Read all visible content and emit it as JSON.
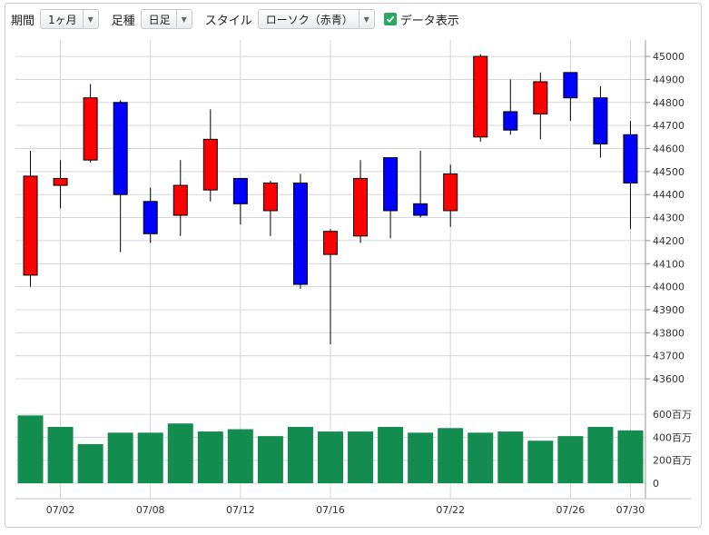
{
  "toolbar": {
    "period_label": "期間",
    "period_value": "1ヶ月",
    "foot_label": "足種",
    "foot_value": "日足",
    "style_label": "スタイル",
    "style_value": "ローソク（赤青）",
    "show_data_label": "データ表示",
    "show_data_checked": true
  },
  "colors": {
    "up": "#ff0000",
    "down": "#0000ff",
    "volume": "#138d4f",
    "grid": "#d3d7db",
    "check": "#2ea861"
  },
  "chart_data": {
    "type": "candlestick",
    "price_axis": {
      "ylim": [
        43550,
        45100
      ],
      "ticks": [
        43600,
        43700,
        43800,
        43900,
        44000,
        44100,
        44200,
        44300,
        44400,
        44500,
        44600,
        44700,
        44800,
        44900,
        45000
      ],
      "tick_labels": [
        "43600",
        "43700",
        "43800",
        "43900",
        "44000",
        "44100",
        "44200",
        "44300",
        "44400",
        "44500",
        "44600",
        "44700",
        "44800",
        "44900",
        "45000"
      ]
    },
    "volume_axis": {
      "unit": "百万",
      "ylim": [
        0,
        650
      ],
      "ticks": [
        0,
        200,
        400,
        600
      ],
      "tick_labels": [
        "0",
        "200百万",
        "400百万",
        "600百万"
      ]
    },
    "x_labels": [
      {
        "index": 1,
        "label": "07/02"
      },
      {
        "index": 4,
        "label": "07/08"
      },
      {
        "index": 7,
        "label": "07/12"
      },
      {
        "index": 10,
        "label": "07/16"
      },
      {
        "index": 14,
        "label": "07/22"
      },
      {
        "index": 18,
        "label": "07/26"
      },
      {
        "index": 20,
        "label": "07/30"
      }
    ],
    "candles": [
      {
        "open": 44050,
        "high": 44590,
        "low": 44000,
        "close": 44480,
        "volume": 590
      },
      {
        "open": 44440,
        "high": 44550,
        "low": 44340,
        "close": 44470,
        "volume": 490
      },
      {
        "open": 44550,
        "high": 44880,
        "low": 44540,
        "close": 44820,
        "volume": 340
      },
      {
        "open": 44800,
        "high": 44810,
        "low": 44150,
        "close": 44400,
        "volume": 440
      },
      {
        "open": 44370,
        "high": 44430,
        "low": 44190,
        "close": 44230,
        "volume": 440
      },
      {
        "open": 44310,
        "high": 44550,
        "low": 44220,
        "close": 44440,
        "volume": 520
      },
      {
        "open": 44420,
        "high": 44770,
        "low": 44370,
        "close": 44640,
        "volume": 450
      },
      {
        "open": 44470,
        "high": 44470,
        "low": 44270,
        "close": 44360,
        "volume": 470
      },
      {
        "open": 44330,
        "high": 44460,
        "low": 44220,
        "close": 44450,
        "volume": 410
      },
      {
        "open": 44450,
        "high": 44490,
        "low": 43990,
        "close": 44010,
        "volume": 490
      },
      {
        "open": 44140,
        "high": 44250,
        "low": 43750,
        "close": 44240,
        "volume": 450
      },
      {
        "open": 44220,
        "high": 44550,
        "low": 44190,
        "close": 44470,
        "volume": 450
      },
      {
        "open": 44560,
        "high": 44560,
        "low": 44210,
        "close": 44330,
        "volume": 490
      },
      {
        "open": 44360,
        "high": 44590,
        "low": 44300,
        "close": 44310,
        "volume": 440
      },
      {
        "open": 44330,
        "high": 44530,
        "low": 44260,
        "close": 44490,
        "volume": 480
      },
      {
        "open": 44650,
        "high": 45010,
        "low": 44630,
        "close": 45000,
        "volume": 440
      },
      {
        "open": 44760,
        "high": 44900,
        "low": 44660,
        "close": 44680,
        "volume": 450
      },
      {
        "open": 44750,
        "high": 44930,
        "low": 44640,
        "close": 44890,
        "volume": 370
      },
      {
        "open": 44930,
        "high": 44930,
        "low": 44720,
        "close": 44820,
        "volume": 410
      },
      {
        "open": 44820,
        "high": 44870,
        "low": 44560,
        "close": 44620,
        "volume": 490
      },
      {
        "open": 44660,
        "high": 44720,
        "low": 44250,
        "close": 44450,
        "volume": 460
      }
    ]
  }
}
